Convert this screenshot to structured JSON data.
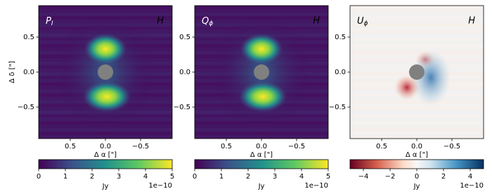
{
  "chart_data": [
    {
      "type": "heatmap",
      "label": "P",
      "label_sub": "I",
      "band": "H",
      "xlabel": "Δ α [\"]",
      "ylabel": "Δ δ [\"]",
      "xlim": [
        0.95,
        -0.95
      ],
      "ylim": [
        -0.95,
        0.95
      ],
      "xticks": [
        0.5,
        {
          "value": 0,
          "label": "0.0"
        },
        {
          "value": -0.5,
          "label": "−0.5"
        }
      ],
      "yticks": [
        {
          "value": -0.5,
          "label": "−0.5"
        },
        {
          "value": 0,
          "label": "0.0"
        },
        0.5
      ],
      "colormap": "viridis",
      "clim": [
        0,
        5
      ],
      "cticks": [
        0,
        1,
        2,
        3,
        4,
        5
      ],
      "clabel": "Jy",
      "coffset": "1e−10"
    },
    {
      "type": "heatmap",
      "label": "Q",
      "label_sub": "ϕ",
      "band": "H",
      "xlabel": "Δ α [\"]",
      "xlim": [
        0.95,
        -0.95
      ],
      "ylim": [
        -0.95,
        0.95
      ],
      "xticks": [
        0.5,
        {
          "value": 0,
          "label": "0.0"
        },
        {
          "value": -0.5,
          "label": "−0.5"
        }
      ],
      "yticks": [
        {
          "value": -0.5,
          "label": "−0.5"
        },
        {
          "value": 0,
          "label": "0.0"
        },
        0.5
      ],
      "colormap": "viridis",
      "clim": [
        0,
        5
      ],
      "cticks": [
        0,
        1,
        2,
        3,
        4,
        5
      ],
      "clabel": "Jy",
      "coffset": "1e−10"
    },
    {
      "type": "heatmap",
      "label": "U",
      "label_sub": "ϕ",
      "band": "H",
      "xlabel": "Δ α [\"]",
      "xlim": [
        0.95,
        -0.95
      ],
      "ylim": [
        -0.95,
        0.95
      ],
      "xticks": [
        0.5,
        {
          "value": 0,
          "label": "0.0"
        },
        {
          "value": -0.5,
          "label": "−0.5"
        }
      ],
      "yticks": [
        {
          "value": -0.5,
          "label": "−0.5"
        },
        {
          "value": 0,
          "label": "0.0"
        },
        0.5
      ],
      "colormap": "RdBu",
      "clim": [
        -5,
        5
      ],
      "cticks": [
        {
          "value": -4,
          "label": "−4"
        },
        {
          "value": -2,
          "label": "−2"
        },
        0,
        2,
        4
      ],
      "clabel": "Jy",
      "coffset": "1e−10"
    }
  ]
}
